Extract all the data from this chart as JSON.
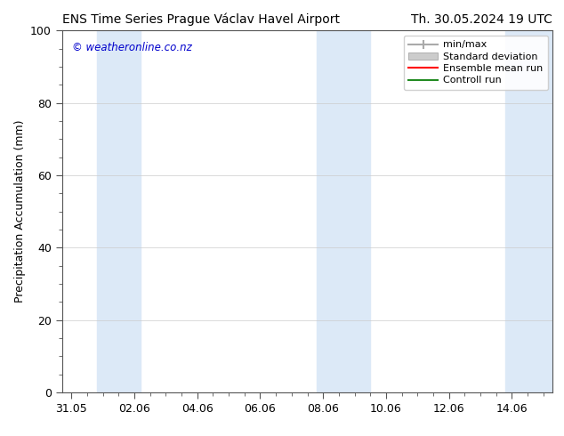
{
  "title_left": "ENS Time Series Prague Václav Havel Airport",
  "title_right": "Th. 30.05.2024 19 UTC",
  "ylabel": "Precipitation Accumulation (mm)",
  "watermark": "© weatheronline.co.nz",
  "watermark_color": "#0000cc",
  "ylim": [
    0,
    100
  ],
  "yticks": [
    0,
    20,
    40,
    60,
    80,
    100
  ],
  "xtick_labels": [
    "31.05",
    "02.06",
    "04.06",
    "06.06",
    "08.06",
    "10.06",
    "12.06",
    "14.06"
  ],
  "xtick_positions": [
    0,
    2,
    4,
    6,
    8,
    10,
    12,
    14
  ],
  "xlim": [
    -0.3,
    15.3
  ],
  "bg_color": "#ffffff",
  "plot_bg_color": "#ffffff",
  "shaded_bands": [
    {
      "x_start": 0.8,
      "x_end": 2.2,
      "color": "#dce9f7"
    },
    {
      "x_start": 7.8,
      "x_end": 9.5,
      "color": "#dce9f7"
    },
    {
      "x_start": 13.8,
      "x_end": 15.3,
      "color": "#dce9f7"
    }
  ],
  "legend_entries": [
    {
      "label": "min/max",
      "color": "#aaaaaa",
      "type": "errorbar"
    },
    {
      "label": "Standard deviation",
      "color": "#cccccc",
      "type": "bar"
    },
    {
      "label": "Ensemble mean run",
      "color": "#ff0000",
      "type": "line"
    },
    {
      "label": "Controll run",
      "color": "#228b22",
      "type": "line"
    }
  ],
  "title_fontsize": 10,
  "tick_fontsize": 9,
  "legend_fontsize": 8,
  "ylabel_fontsize": 9
}
